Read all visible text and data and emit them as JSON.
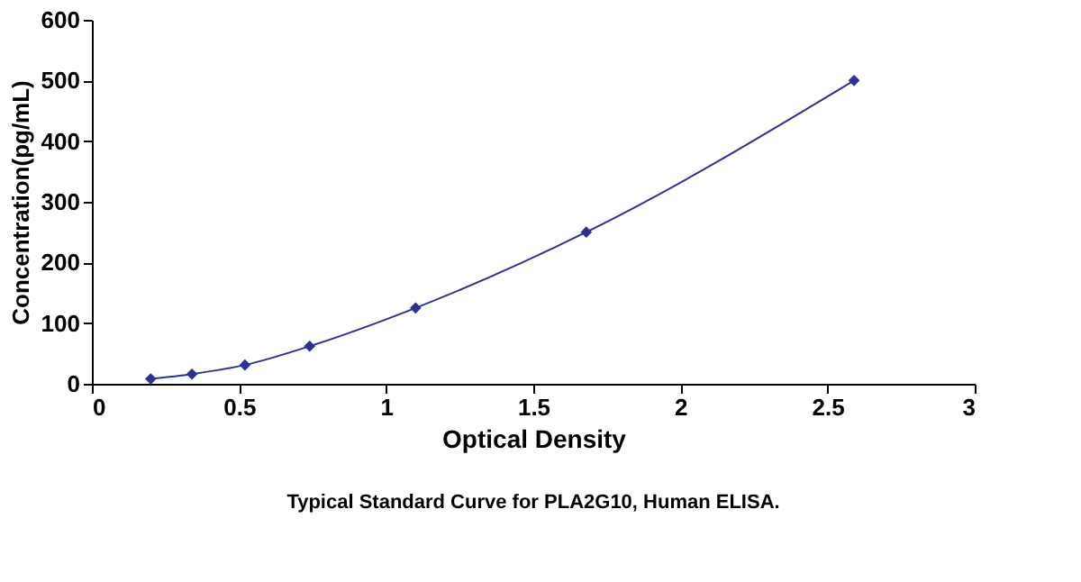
{
  "chart_data": {
    "type": "line",
    "title": "Typical Standard Curve for PLA2G10, Human ELISA.",
    "xlabel": "Optical Density",
    "ylabel": "Concentration(pg/mL)",
    "x": [
      0.2,
      0.34,
      0.52,
      0.74,
      1.1,
      1.68,
      2.59
    ],
    "series": [
      {
        "color": "#2e3192",
        "values": [
          8,
          16,
          31,
          62,
          125,
          250,
          500
        ]
      }
    ],
    "marker": "diamond",
    "line_style": "solid",
    "grid": false,
    "legend": false,
    "xlim": [
      0,
      3
    ],
    "xticks": [
      0,
      0.5,
      1,
      1.5,
      2,
      2.5,
      3
    ],
    "ylim": [
      0,
      600
    ],
    "yticks": [
      0,
      100,
      200,
      300,
      400,
      500,
      600
    ]
  }
}
